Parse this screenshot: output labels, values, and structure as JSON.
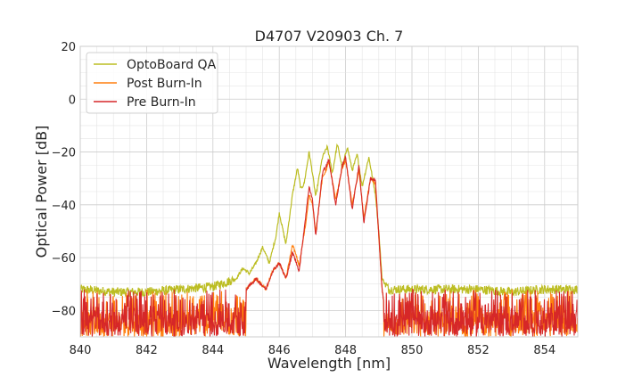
{
  "chart_data": {
    "type": "line",
    "title": "D4707 V20903 Ch. 7",
    "xlabel": "Wavelength [nm]",
    "ylabel": "Optical Power [dB]",
    "xlim": [
      840,
      855
    ],
    "ylim": [
      -90,
      20
    ],
    "xticks": [
      840,
      842,
      844,
      846,
      848,
      850,
      852,
      854
    ],
    "yticks": [
      20,
      0,
      -20,
      -40,
      -60,
      -80
    ],
    "grid": true,
    "legend_position": "top-left",
    "noise_floor": {
      "x_range": [
        840,
        855
      ],
      "band_dB": [
        -90,
        -72
      ]
    },
    "series": [
      {
        "name": "OptoBoard QA",
        "color": "#bcbd22",
        "points": [
          [
            840,
            -72
          ],
          [
            841,
            -73
          ],
          [
            842,
            -73
          ],
          [
            843,
            -72
          ],
          [
            844,
            -71
          ],
          [
            844.7,
            -68
          ],
          [
            844.9,
            -64
          ],
          [
            845.1,
            -66
          ],
          [
            845.3,
            -62
          ],
          [
            845.5,
            -56
          ],
          [
            845.7,
            -62
          ],
          [
            845.9,
            -52
          ],
          [
            846.0,
            -43
          ],
          [
            846.2,
            -55
          ],
          [
            846.4,
            -36
          ],
          [
            846.55,
            -26
          ],
          [
            846.65,
            -34
          ],
          [
            846.75,
            -32
          ],
          [
            846.9,
            -20
          ],
          [
            847.0,
            -28
          ],
          [
            847.1,
            -37
          ],
          [
            847.3,
            -22
          ],
          [
            847.45,
            -18
          ],
          [
            847.6,
            -28
          ],
          [
            847.75,
            -17
          ],
          [
            847.9,
            -26
          ],
          [
            848.05,
            -18
          ],
          [
            848.2,
            -27
          ],
          [
            848.35,
            -21
          ],
          [
            848.5,
            -33
          ],
          [
            848.7,
            -22
          ],
          [
            848.9,
            -36
          ],
          [
            849.0,
            -50
          ],
          [
            849.1,
            -68
          ],
          [
            849.3,
            -72
          ],
          [
            850,
            -72
          ],
          [
            851,
            -72
          ],
          [
            852,
            -72
          ],
          [
            853,
            -73
          ],
          [
            854,
            -72
          ],
          [
            855,
            -72
          ]
        ]
      },
      {
        "name": "Post Burn-In",
        "color": "#ff7f0e",
        "points": [
          [
            840,
            -90
          ],
          [
            841,
            -90
          ],
          [
            842,
            -90
          ],
          [
            843,
            -90
          ],
          [
            844,
            -90
          ],
          [
            845.0,
            -72
          ],
          [
            845.3,
            -68
          ],
          [
            845.6,
            -72
          ],
          [
            845.8,
            -65
          ],
          [
            846.0,
            -62
          ],
          [
            846.2,
            -68
          ],
          [
            846.4,
            -55
          ],
          [
            846.6,
            -63
          ],
          [
            846.8,
            -47
          ],
          [
            846.9,
            -36
          ],
          [
            847.0,
            -40
          ],
          [
            847.1,
            -50
          ],
          [
            847.3,
            -30
          ],
          [
            847.5,
            -24
          ],
          [
            847.7,
            -38
          ],
          [
            847.9,
            -26
          ],
          [
            848.0,
            -23
          ],
          [
            848.2,
            -40
          ],
          [
            848.4,
            -27
          ],
          [
            848.55,
            -45
          ],
          [
            848.75,
            -30
          ],
          [
            848.9,
            -32
          ],
          [
            849.1,
            -72
          ],
          [
            849.3,
            -90
          ],
          [
            850,
            -90
          ],
          [
            851,
            -90
          ],
          [
            852,
            -90
          ],
          [
            853,
            -90
          ],
          [
            854,
            -90
          ],
          [
            855,
            -90
          ]
        ]
      },
      {
        "name": "Pre Burn-In",
        "color": "#d62728",
        "points": [
          [
            840,
            -90
          ],
          [
            841,
            -90
          ],
          [
            842,
            -90
          ],
          [
            843,
            -90
          ],
          [
            844,
            -90
          ],
          [
            845.0,
            -72
          ],
          [
            845.3,
            -68
          ],
          [
            845.6,
            -72
          ],
          [
            845.8,
            -65
          ],
          [
            846.0,
            -62
          ],
          [
            846.2,
            -68
          ],
          [
            846.4,
            -58
          ],
          [
            846.6,
            -65
          ],
          [
            846.8,
            -44
          ],
          [
            846.9,
            -33
          ],
          [
            847.0,
            -38
          ],
          [
            847.1,
            -52
          ],
          [
            847.3,
            -28
          ],
          [
            847.5,
            -23
          ],
          [
            847.7,
            -40
          ],
          [
            847.9,
            -25
          ],
          [
            848.0,
            -22
          ],
          [
            848.2,
            -42
          ],
          [
            848.4,
            -25
          ],
          [
            848.55,
            -47
          ],
          [
            848.75,
            -30
          ],
          [
            848.9,
            -31
          ],
          [
            849.1,
            -72
          ],
          [
            849.3,
            -90
          ],
          [
            850,
            -90
          ],
          [
            851,
            -90
          ],
          [
            852,
            -90
          ],
          [
            853,
            -90
          ],
          [
            854,
            -90
          ],
          [
            855,
            -90
          ]
        ]
      }
    ]
  }
}
